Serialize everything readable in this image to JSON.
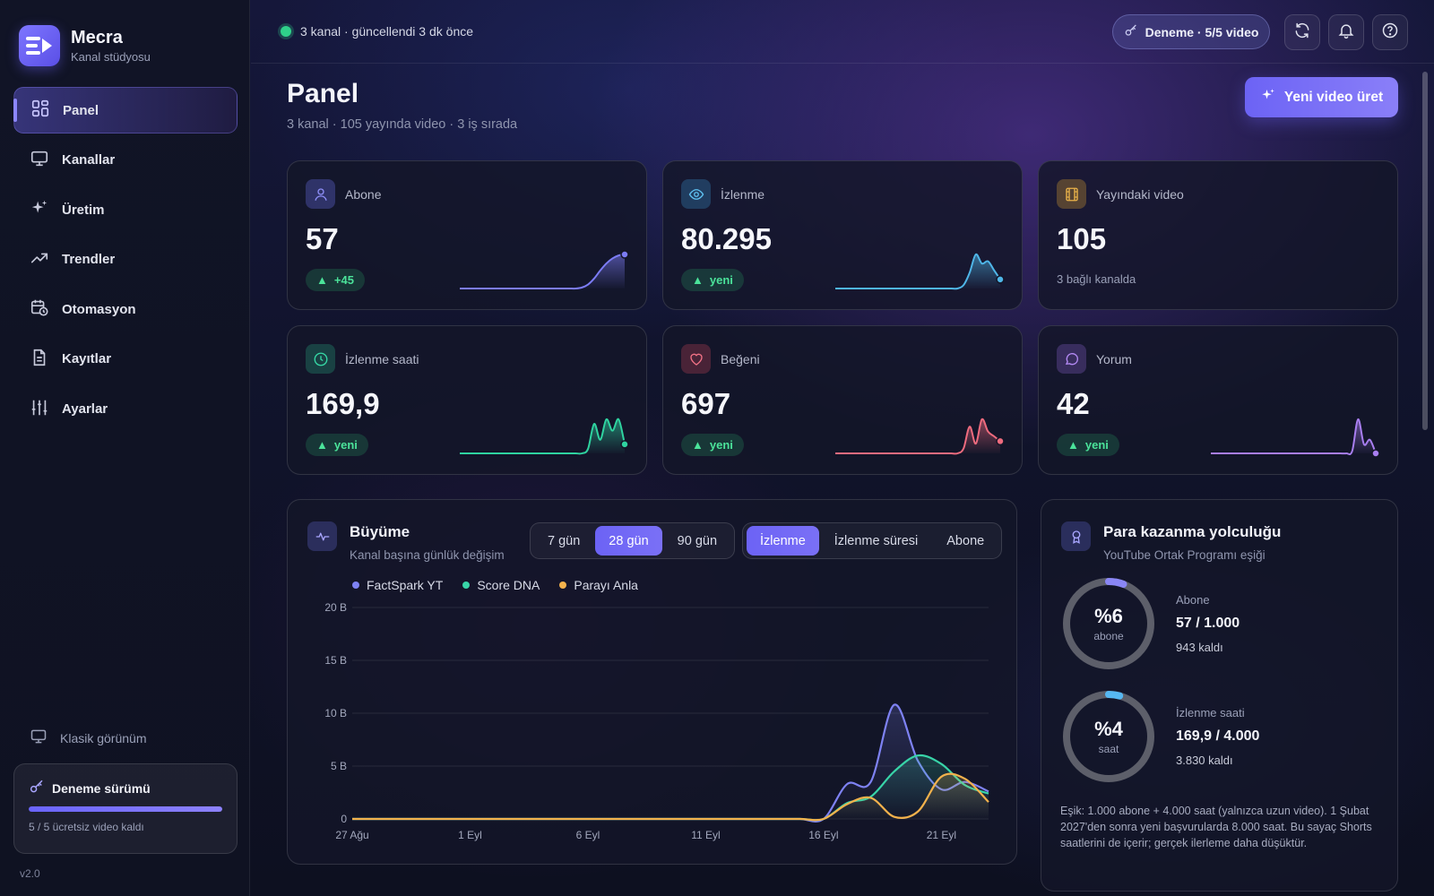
{
  "brand": {
    "name": "Mecra",
    "subtitle": "Kanal stüdyosu"
  },
  "nav": [
    {
      "label": "Panel",
      "icon": "grid-icon",
      "active": true
    },
    {
      "label": "Kanallar",
      "icon": "monitor-icon"
    },
    {
      "label": "Üretim",
      "icon": "sparkle-icon"
    },
    {
      "label": "Trendler",
      "icon": "trending-up-icon"
    },
    {
      "label": "Otomasyon",
      "icon": "calendar-clock-icon"
    },
    {
      "label": "Kayıtlar",
      "icon": "document-icon"
    },
    {
      "label": "Ayarlar",
      "icon": "sliders-icon"
    }
  ],
  "sidebar_footer": {
    "classic_view": "Klasik görünüm",
    "trial_title": "Deneme sürümü",
    "trial_progress": 1.0,
    "trial_sub": "5 / 5 ücretsiz video kaldı",
    "version": "v2.0"
  },
  "topbar": {
    "status": "3 kanal · güncellendi 3 dk önce",
    "trial_pill": "Deneme · 5/5 video"
  },
  "header": {
    "title": "Panel",
    "subtitle": "3 kanal · 105 yayında video · 3 iş sırada",
    "new_video_button": "Yeni video üret"
  },
  "stats": [
    {
      "label": "Abone",
      "value": "57",
      "badge": "+45",
      "color": "#7c7cf5",
      "icon_bg": "rgba(100,105,220,0.35)",
      "icon": "user-icon",
      "spark": [
        0,
        0,
        0,
        0,
        0,
        0,
        0,
        0,
        0,
        0,
        0,
        0,
        0,
        0,
        0,
        0,
        0,
        0,
        0,
        0,
        1,
        4,
        10,
        18,
        25,
        30,
        33,
        34
      ]
    },
    {
      "label": "İzlenme",
      "value": "80.295",
      "badge": "yeni",
      "color": "#4fb6e8",
      "icon_bg": "rgba(60,150,210,0.3)",
      "icon": "eye-icon",
      "spark": [
        0,
        0,
        0,
        0,
        0,
        0,
        0,
        0,
        0,
        0,
        0,
        0,
        0,
        0,
        0,
        0,
        0,
        0,
        0,
        0,
        0,
        3,
        14,
        30,
        22,
        24,
        16,
        8
      ]
    },
    {
      "label": "Yayındaki video",
      "value": "105",
      "note": "3 bağlı kanalda",
      "color": "#e0a93a",
      "icon_bg": "rgba(200,150,50,0.35)",
      "icon": "film-icon"
    },
    {
      "label": "İzlenme saati",
      "value": "169,9",
      "badge": "yeni",
      "color": "#2fd3a0",
      "icon_bg": "rgba(40,170,130,0.3)",
      "icon": "clock-icon",
      "spark": [
        0,
        0,
        0,
        0,
        0,
        0,
        0,
        0,
        0,
        0,
        0,
        0,
        0,
        0,
        0,
        0,
        0,
        0,
        0,
        0,
        0,
        4,
        26,
        12,
        30,
        20,
        30,
        8
      ]
    },
    {
      "label": "Beğeni",
      "value": "697",
      "badge": "yeni",
      "color": "#ee6b7e",
      "icon_bg": "rgba(200,70,90,0.3)",
      "icon": "heart-icon",
      "spark": [
        0,
        0,
        0,
        0,
        0,
        0,
        0,
        0,
        0,
        0,
        0,
        0,
        0,
        0,
        0,
        0,
        0,
        0,
        0,
        0,
        0,
        4,
        22,
        8,
        28,
        18,
        14,
        10
      ]
    },
    {
      "label": "Yorum",
      "value": "42",
      "badge": "yeni",
      "color": "#a87ef0",
      "icon_bg": "rgba(140,100,210,0.3)",
      "icon": "chat-icon",
      "spark": [
        0,
        0,
        0,
        0,
        0,
        0,
        0,
        0,
        0,
        0,
        0,
        0,
        0,
        0,
        0,
        0,
        0,
        0,
        0,
        0,
        0,
        0,
        0,
        0,
        2,
        30,
        8,
        12,
        0
      ]
    }
  ],
  "growth": {
    "title": "Büyüme",
    "subtitle": "Kanal başına günlük değişim",
    "ranges": [
      {
        "label": "7 gün"
      },
      {
        "label": "28 gün",
        "active": true
      },
      {
        "label": "90 gün"
      }
    ],
    "metrics": [
      {
        "label": "İzlenme",
        "active": true
      },
      {
        "label": "İzlenme süresi"
      },
      {
        "label": "Abone"
      }
    ]
  },
  "chart_data": {
    "type": "line",
    "title": "Büyüme",
    "ylim": [
      0,
      20000
    ],
    "yticks": [
      "20 B",
      "15 B",
      "10 B",
      "5 B",
      "0"
    ],
    "ytick_values": [
      20000,
      15000,
      10000,
      5000,
      0
    ],
    "x": [
      "27 Ağu",
      "28 Ağu",
      "29 Ağu",
      "30 Ağu",
      "31 Ağu",
      "1 Eyl",
      "2 Eyl",
      "3 Eyl",
      "4 Eyl",
      "5 Eyl",
      "6 Eyl",
      "7 Eyl",
      "8 Eyl",
      "9 Eyl",
      "10 Eyl",
      "11 Eyl",
      "12 Eyl",
      "13 Eyl",
      "14 Eyl",
      "15 Eyl",
      "16 Eyl",
      "17 Eyl",
      "18 Eyl",
      "19 Eyl",
      "20 Eyl",
      "21 Eyl",
      "22 Eyl",
      "23 Eyl"
    ],
    "xtick_labels": [
      "27 Ağu",
      "1 Eyl",
      "6 Eyl",
      "11 Eyl",
      "16 Eyl",
      "21 Eyl"
    ],
    "series": [
      {
        "name": "FactSpark YT",
        "color": "#7e82f3",
        "values": [
          0,
          0,
          0,
          0,
          0,
          0,
          0,
          0,
          0,
          0,
          0,
          0,
          0,
          0,
          0,
          0,
          0,
          0,
          0,
          0,
          0,
          3300,
          3500,
          10800,
          5500,
          2800,
          3500,
          2600
        ]
      },
      {
        "name": "Score DNA",
        "color": "#38d4a8",
        "values": [
          0,
          0,
          0,
          0,
          0,
          0,
          0,
          0,
          0,
          0,
          0,
          0,
          0,
          0,
          0,
          0,
          0,
          0,
          0,
          0,
          0,
          1500,
          2100,
          4500,
          6000,
          5200,
          3200,
          2400
        ]
      },
      {
        "name": "Parayı Anla",
        "color": "#f3b24c",
        "values": [
          0,
          0,
          0,
          0,
          0,
          0,
          0,
          0,
          0,
          0,
          0,
          0,
          0,
          0,
          0,
          0,
          0,
          0,
          0,
          0,
          0,
          1400,
          2000,
          200,
          700,
          4000,
          3800,
          1600
        ]
      }
    ]
  },
  "monetization": {
    "title": "Para kazanma yolculuğu",
    "subtitle": "YouTube Ortak Programı eşiği",
    "rings": [
      {
        "pct": "%6",
        "unit": "abone",
        "progress": 0.057,
        "color": "#8a86f5",
        "label": "Abone",
        "value": "57 / 1.000",
        "remaining": "943 kaldı"
      },
      {
        "pct": "%4",
        "unit": "saat",
        "progress": 0.042,
        "color": "#56b8f2",
        "label": "İzlenme saati",
        "value": "169,9 / 4.000",
        "remaining": "3.830 kaldı"
      }
    ],
    "note": "Eşik: 1.000 abone + 4.000 saat (yalnızca uzun video). 1 Şubat 2027'den sonra yeni başvurularda 8.000 saat. Bu sayaç Shorts saatlerini de içerir; gerçek ilerleme daha düşüktür."
  }
}
